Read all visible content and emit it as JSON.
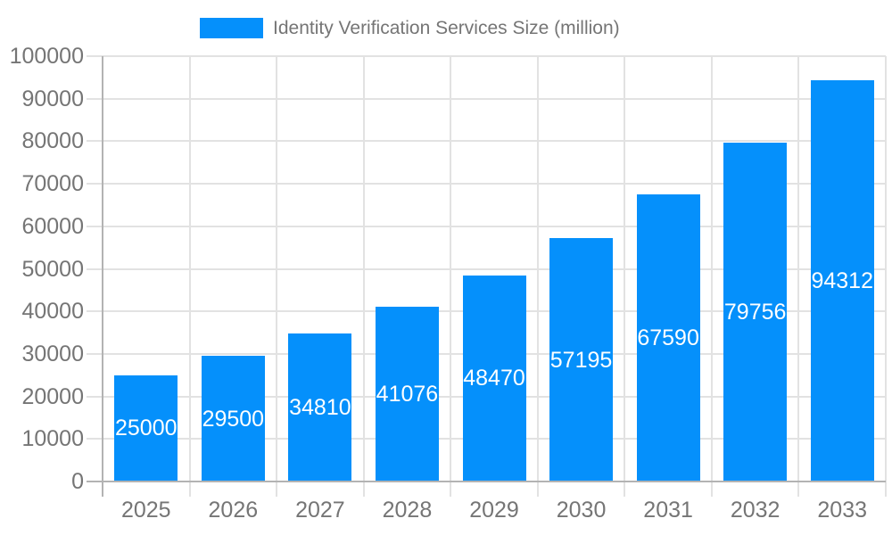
{
  "chart_data": {
    "type": "bar",
    "title": "Identity Verification Services Size (million)",
    "legend": {
      "label": "Identity Verification Services Size (million)",
      "position": "top"
    },
    "categories": [
      "2025",
      "2026",
      "2027",
      "2028",
      "2029",
      "2030",
      "2031",
      "2032",
      "2033"
    ],
    "values": [
      25000,
      29500,
      34810,
      41076,
      48470,
      57195,
      67590,
      79756,
      94312
    ],
    "value_labels": [
      "25000",
      "29500",
      "34810",
      "41076",
      "48470",
      "57195",
      "67590",
      "79756",
      "94312"
    ],
    "xlabel": "",
    "ylabel": "",
    "ylim": [
      0,
      100000
    ],
    "y_ticks": [
      0,
      10000,
      20000,
      30000,
      40000,
      50000,
      60000,
      70000,
      80000,
      90000,
      100000
    ],
    "grid": true,
    "colors": {
      "bar": "#0590fb",
      "value_text": "#ffffff",
      "axis_text": "#757575",
      "axis_line": "#b3b3b3",
      "gridline": "#e2e2e2",
      "background": "#ffffff"
    }
  }
}
